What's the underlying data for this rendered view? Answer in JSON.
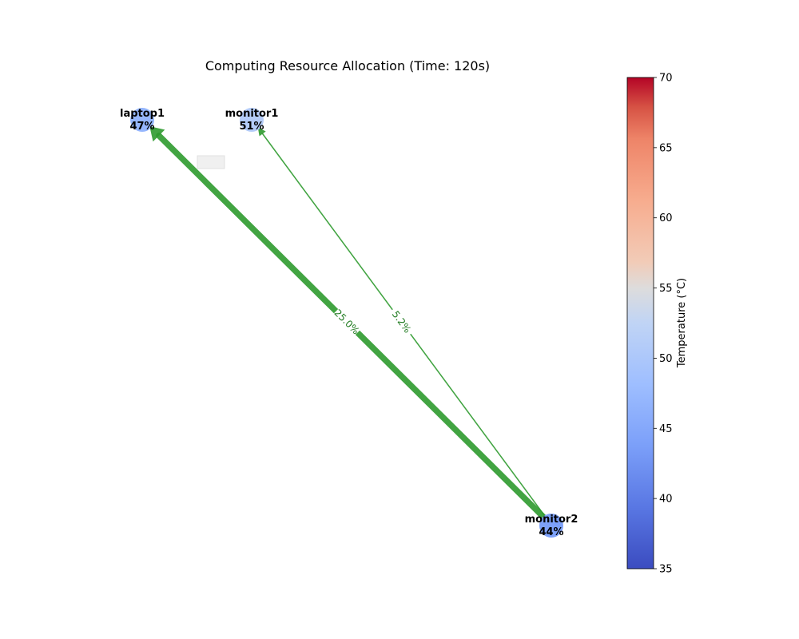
{
  "title": "Computing Resource Allocation (Time: 120s)",
  "nodes": [
    {
      "id": "laptop1",
      "name": "laptop1",
      "value": "47%",
      "temperature": 47
    },
    {
      "id": "monitor1",
      "name": "monitor1",
      "value": "51%",
      "temperature": 51
    },
    {
      "id": "monitor2",
      "name": "monitor2",
      "value": "44%",
      "temperature": 44
    }
  ],
  "edges": [
    {
      "from": "monitor2",
      "to": "laptop1",
      "label": "25.0%",
      "weight": 25.0
    },
    {
      "from": "monitor2",
      "to": "monitor1",
      "label": "5.2%",
      "weight": 5.2
    }
  ],
  "colorbar": {
    "label": "Temperature (°C)",
    "min": 35,
    "max": 70,
    "ticks": [
      "35",
      "40",
      "45",
      "50",
      "55",
      "60",
      "65",
      "70"
    ],
    "colormap": "coolwarm"
  },
  "colors": {
    "edge": "#2e9a2e",
    "edge_label": "#1f7a1f"
  }
}
